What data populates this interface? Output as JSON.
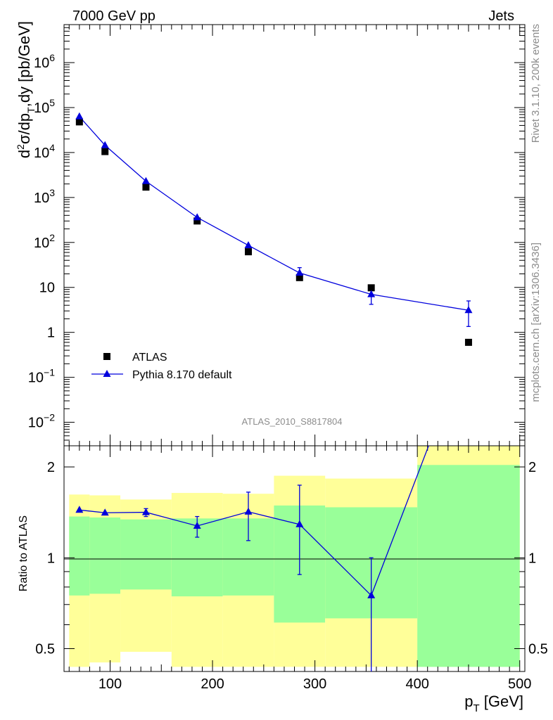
{
  "header": {
    "left": "7000 GeV pp",
    "right": "Jets"
  },
  "side_labels": {
    "top": "Rivet 3.1.10,  200k events",
    "bottom": "mcplots.cern.ch [arXiv:1306.3436]"
  },
  "analysis_id": "ATLAS_2010_S8817804",
  "colors": {
    "data": "#000000",
    "mc": "#0000dd",
    "band_outer": "#ffff99",
    "band_inner": "#99ff99"
  },
  "chart_data": [
    {
      "type": "scatter",
      "panel": "main",
      "ylabel": "d²σ/dp_T,dy [pb/GeV]",
      "yscale": "log",
      "xlim": [
        55,
        505
      ],
      "ylim": [
        0.003,
        7000000
      ],
      "yticks": [
        {
          "v": 1000000,
          "b": "10",
          "e": "6"
        },
        {
          "v": 100000,
          "b": "10",
          "e": "5"
        },
        {
          "v": 10000,
          "b": "10",
          "e": "4"
        },
        {
          "v": 1000,
          "b": "10",
          "e": "3"
        },
        {
          "v": 100,
          "b": "10",
          "e": "2"
        },
        {
          "v": 10,
          "b": "10",
          "e": ""
        },
        {
          "v": 1,
          "b": "1",
          "e": ""
        },
        {
          "v": 0.1,
          "b": "10",
          "e": "−1"
        },
        {
          "v": 0.01,
          "b": "10",
          "e": "−2"
        }
      ],
      "legend": {
        "position": "bottom-left",
        "entries": [
          "ATLAS",
          "Pythia 8.170 default"
        ]
      },
      "series": [
        {
          "name": "ATLAS",
          "marker": "square",
          "x": [
            70,
            95,
            135,
            185,
            235,
            285,
            355,
            450
          ],
          "y": [
            48000,
            10500,
            1700,
            300,
            62,
            16.5,
            9.8,
            0.6
          ]
        },
        {
          "name": "Pythia 8.170 default",
          "marker": "triangle",
          "x": [
            70,
            95,
            135,
            185,
            235,
            285,
            355,
            450
          ],
          "y": [
            63000,
            14500,
            2300,
            360,
            86,
            21,
            7,
            3.1
          ],
          "err_low": [
            62000,
            14300,
            2270,
            350,
            82,
            17,
            4.2,
            1.35
          ],
          "err_high": [
            64000,
            14700,
            2330,
            370,
            90,
            27.5,
            9.6,
            5
          ]
        }
      ]
    },
    {
      "type": "line",
      "panel": "ratio",
      "ylabel": "Ratio to ATLAS",
      "yscale": "log",
      "xlabel_base": "p",
      "xlabel_sub": "T",
      "xlabel_unit": " [GeV]",
      "xlim": [
        55,
        505
      ],
      "ylim": [
        0.42,
        2.35
      ],
      "xticks": [
        100,
        200,
        300,
        400,
        500
      ],
      "yticks": [
        0.5,
        1,
        2
      ],
      "bands": [
        {
          "x0": 60,
          "x1": 80,
          "outer": [
            0.435,
            1.62
          ],
          "inner": [
            0.75,
            1.37
          ]
        },
        {
          "x0": 80,
          "x1": 110,
          "outer": [
            0.45,
            1.61
          ],
          "inner": [
            0.76,
            1.36
          ]
        },
        {
          "x0": 110,
          "x1": 160,
          "outer": [
            0.488,
            1.56
          ],
          "inner": [
            0.785,
            1.34
          ]
        },
        {
          "x0": 160,
          "x1": 210,
          "outer": [
            0.435,
            1.64
          ],
          "inner": [
            0.745,
            1.35
          ]
        },
        {
          "x0": 210,
          "x1": 260,
          "outer": [
            0.435,
            1.63
          ],
          "inner": [
            0.75,
            1.35
          ]
        },
        {
          "x0": 260,
          "x1": 310,
          "outer": [
            0.435,
            1.87
          ],
          "inner": [
            0.61,
            1.49
          ]
        },
        {
          "x0": 310,
          "x1": 400,
          "outer": [
            0.435,
            1.83
          ],
          "inner": [
            0.63,
            1.47
          ]
        },
        {
          "x0": 400,
          "x1": 500,
          "outer": [
            0.435,
            2.35
          ],
          "inner": [
            0.435,
            2.03
          ]
        }
      ],
      "series": [
        {
          "name": "Pythia 8.170 default",
          "x": [
            70,
            95,
            135,
            185,
            235,
            285,
            355,
            450
          ],
          "y": [
            1.44,
            1.41,
            1.415,
            1.275,
            1.42,
            1.29,
            0.75,
            5.2
          ],
          "err_low": [
            1.43,
            1.4,
            1.37,
            1.17,
            1.14,
            0.88,
            0.38,
            5.2
          ],
          "err_high": [
            1.45,
            1.42,
            1.455,
            1.37,
            1.65,
            1.74,
            1.0,
            5.2
          ]
        }
      ]
    }
  ]
}
